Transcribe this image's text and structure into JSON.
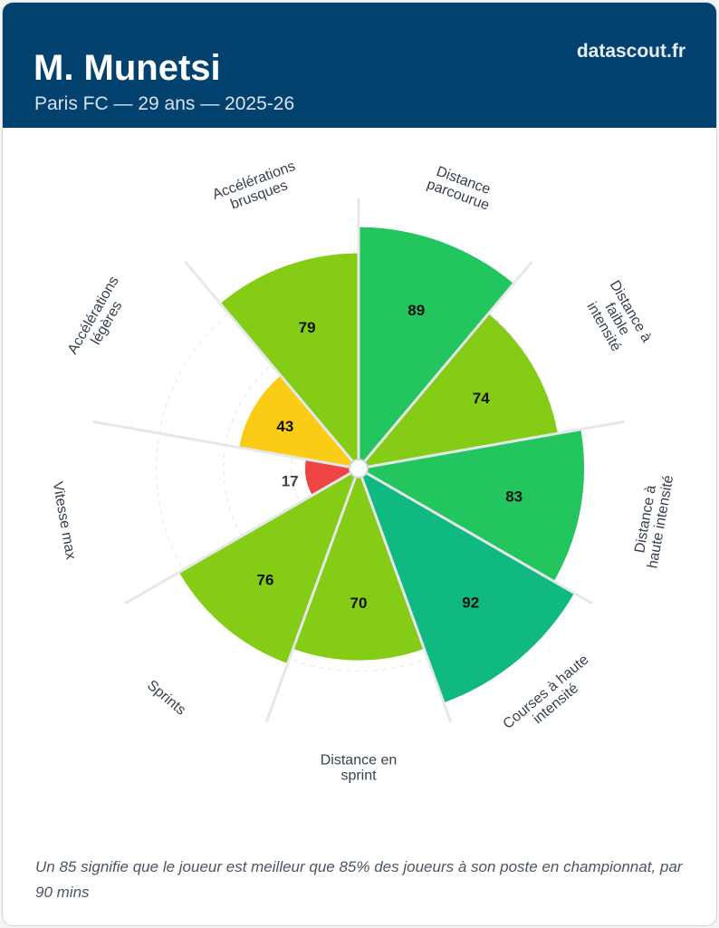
{
  "header": {
    "title": "M. Munetsi",
    "subtitle": "Paris FC — 29 ans — 2025-26",
    "brand": "datascout.fr"
  },
  "chart_data": {
    "type": "pie",
    "subtype": "polar-bar",
    "range": [
      0,
      100
    ],
    "categories": [
      [
        "Distance",
        "parcourue"
      ],
      [
        "Distance à",
        "faible",
        "intensité"
      ],
      [
        "Distance à",
        "haute intensité"
      ],
      [
        "Courses à haute",
        "intensité"
      ],
      [
        "Distance en",
        "sprint"
      ],
      [
        "Sprints"
      ],
      [
        "Vitesse max"
      ],
      [
        "Accélérations",
        "légères"
      ],
      [
        "Accélérations",
        "brusques"
      ]
    ],
    "values": [
      89,
      74,
      83,
      92,
      70,
      76,
      17,
      43,
      79
    ],
    "colors": [
      "#22c55e",
      "#84cc16",
      "#22c55e",
      "#10b981",
      "#84cc16",
      "#84cc16",
      "#ef4444",
      "#facc15",
      "#84cc16"
    ]
  },
  "footer": {
    "note": "Un 85 signifie que le joueur est meilleur que 85% des joueurs à son poste en championnat, par 90 mins"
  }
}
